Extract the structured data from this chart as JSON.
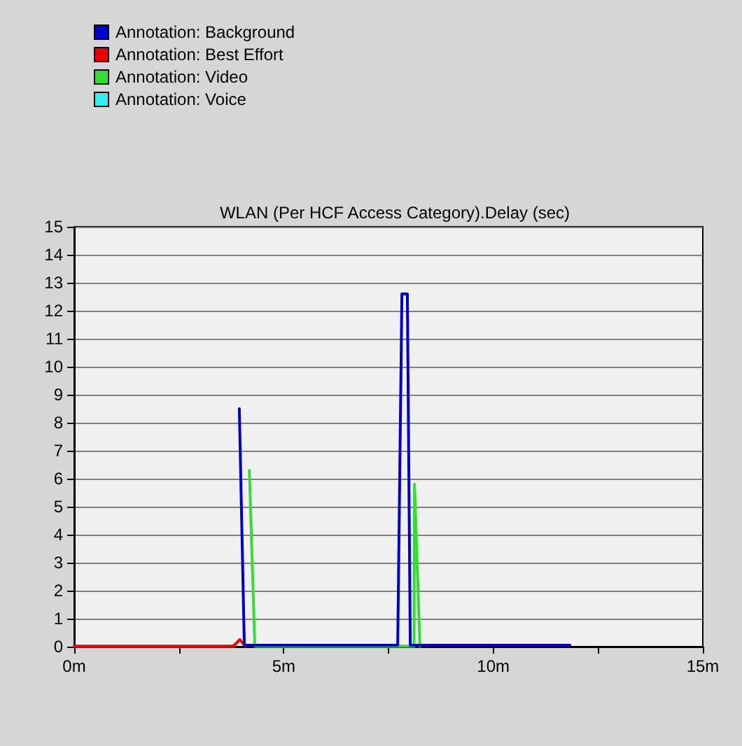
{
  "chart_data": {
    "type": "line",
    "title": "WLAN (Per HCF Access Category).Delay (sec)",
    "xlim": [
      0,
      15
    ],
    "xticks": [
      {
        "value": 0,
        "label": "0m"
      },
      {
        "value": 2.5,
        "label": null
      },
      {
        "value": 5,
        "label": "5m"
      },
      {
        "value": 7.5,
        "label": null
      },
      {
        "value": 10,
        "label": "10m"
      },
      {
        "value": 12.5,
        "label": null
      },
      {
        "value": 15,
        "label": "15m"
      }
    ],
    "ylim": [
      0,
      15
    ],
    "yticks": [
      0,
      1,
      2,
      3,
      4,
      5,
      6,
      7,
      8,
      9,
      10,
      11,
      12,
      13,
      14,
      15
    ],
    "grid": "y",
    "legend": "top left",
    "marker": "none",
    "line_style": "solid",
    "series": [
      {
        "name": "Annotation: Background",
        "color": "#0000cc",
        "x": [
          3.94,
          4.06,
          7.72,
          7.82,
          7.95,
          8.02,
          11.83
        ],
        "values": [
          8.5,
          0.05,
          0.05,
          12.6,
          12.6,
          0.05,
          0.05
        ]
      },
      {
        "name": "Annotation: Best Effort",
        "color": "#ee0000",
        "x": [
          0,
          3.8,
          3.95,
          4.08
        ],
        "values": [
          0.02,
          0.02,
          0.25,
          0.02
        ]
      },
      {
        "name": "Annotation: Video",
        "color": "#33dd33",
        "x": [
          4.18,
          4.31,
          8.11,
          8.12,
          8.25
        ],
        "values": [
          6.3,
          0.02,
          0.02,
          5.8,
          0.02
        ]
      },
      {
        "name": "Annotation: Voice",
        "color": "#33eeee"
      }
    ]
  }
}
